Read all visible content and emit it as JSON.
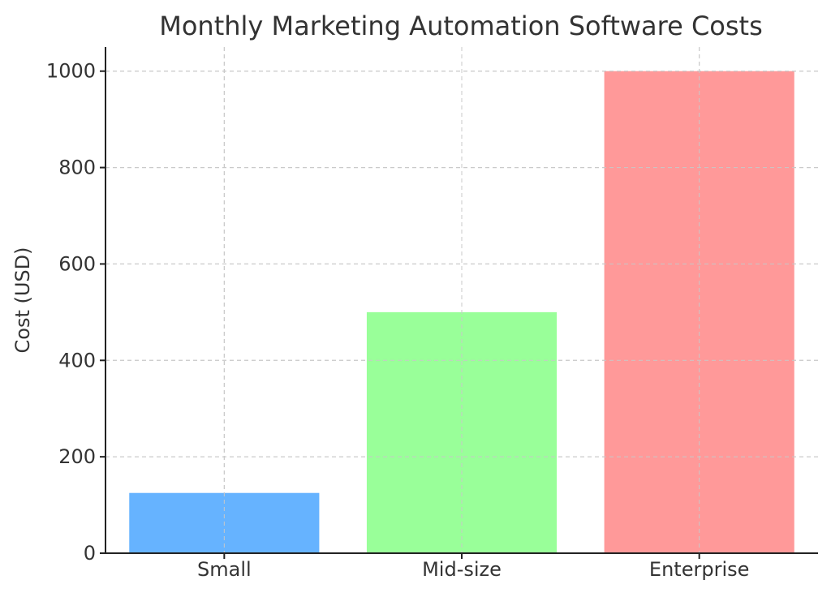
{
  "chart_data": {
    "type": "bar",
    "title": "Monthly Marketing Automation Software Costs",
    "xlabel": "",
    "ylabel": "Cost (USD)",
    "categories": [
      "Small",
      "Mid-size",
      "Enterprise"
    ],
    "values": [
      125,
      500,
      1000
    ],
    "colors": [
      "#66b3ff",
      "#99ff99",
      "#ff9999"
    ],
    "ylim": [
      0,
      1050
    ],
    "yticks": [
      0,
      200,
      400,
      600,
      800,
      1000
    ],
    "grid": true,
    "legend": "none"
  }
}
